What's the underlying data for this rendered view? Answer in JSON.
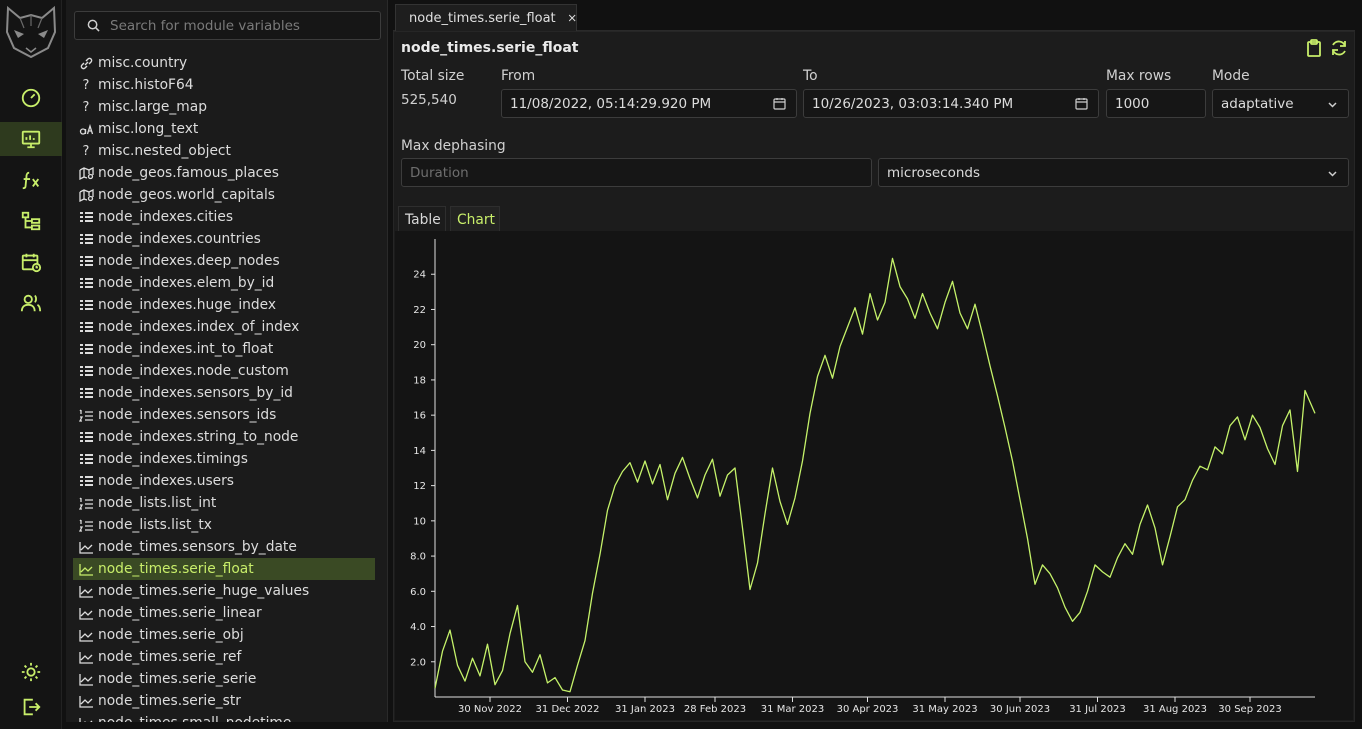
{
  "rail": {
    "items": [
      "dashboard-icon",
      "monitor-icon",
      "function-icon",
      "tree-icon",
      "calendar-clock-icon",
      "users-icon"
    ],
    "bottom": [
      "sun-icon",
      "logout-icon"
    ]
  },
  "sidebar": {
    "search_placeholder": "Search for module variables",
    "items": [
      {
        "icon": "link",
        "label": "misc.country"
      },
      {
        "icon": "question",
        "label": "misc.histoF64"
      },
      {
        "icon": "question",
        "label": "misc.large_map"
      },
      {
        "icon": "text",
        "label": "misc.long_text"
      },
      {
        "icon": "question",
        "label": "misc.nested_object"
      },
      {
        "icon": "map",
        "label": "node_geos.famous_places"
      },
      {
        "icon": "map",
        "label": "node_geos.world_capitals"
      },
      {
        "icon": "index",
        "label": "node_indexes.cities"
      },
      {
        "icon": "index",
        "label": "node_indexes.countries"
      },
      {
        "icon": "index",
        "label": "node_indexes.deep_nodes"
      },
      {
        "icon": "index",
        "label": "node_indexes.elem_by_id"
      },
      {
        "icon": "index",
        "label": "node_indexes.huge_index"
      },
      {
        "icon": "index",
        "label": "node_indexes.index_of_index"
      },
      {
        "icon": "index",
        "label": "node_indexes.int_to_float"
      },
      {
        "icon": "index",
        "label": "node_indexes.node_custom"
      },
      {
        "icon": "index",
        "label": "node_indexes.sensors_by_id"
      },
      {
        "icon": "ordered-list",
        "label": "node_indexes.sensors_ids"
      },
      {
        "icon": "index",
        "label": "node_indexes.string_to_node"
      },
      {
        "icon": "index",
        "label": "node_indexes.timings"
      },
      {
        "icon": "index",
        "label": "node_indexes.users"
      },
      {
        "icon": "ordered-list",
        "label": "node_lists.list_int"
      },
      {
        "icon": "ordered-list",
        "label": "node_lists.list_tx"
      },
      {
        "icon": "series",
        "label": "node_times.sensors_by_date"
      },
      {
        "icon": "series",
        "label": "node_times.serie_float",
        "selected": true
      },
      {
        "icon": "series",
        "label": "node_times.serie_huge_values"
      },
      {
        "icon": "series",
        "label": "node_times.serie_linear"
      },
      {
        "icon": "series",
        "label": "node_times.serie_obj"
      },
      {
        "icon": "series",
        "label": "node_times.serie_ref"
      },
      {
        "icon": "series",
        "label": "node_times.serie_serie"
      },
      {
        "icon": "series",
        "label": "node_times.serie_str"
      },
      {
        "icon": "series",
        "label": "node_times.small_nodetime"
      }
    ]
  },
  "main": {
    "tab_label": "node_times.serie_float",
    "title": "node_times.serie_float",
    "total_size_label": "Total size",
    "total_size": "525,540",
    "from_label": "From",
    "from_value": "11/08/2022, 05:14:29.920 PM",
    "to_label": "To",
    "to_value": "10/26/2023, 03:03:14.340 PM",
    "max_rows_label": "Max rows",
    "max_rows": "1000",
    "mode_label": "Mode",
    "mode": "adaptative",
    "dephasing_label": "Max dephasing",
    "duration_placeholder": "Duration",
    "unit": "microseconds",
    "view_tabs": [
      "Table",
      "Chart"
    ],
    "active_view": "Chart"
  },
  "colors": {
    "accent": "#c8ee6a",
    "line": "#c5f26a",
    "selected_bg": "#3a4a24"
  },
  "chart_data": {
    "type": "line",
    "title": "",
    "xlabel": "",
    "ylabel": "",
    "x_range": [
      "2022-11-08",
      "2023-10-26"
    ],
    "ylim": [
      0,
      26
    ],
    "yticks": [
      "2.0",
      "4.0",
      "6.0",
      "8.0",
      "10",
      "12",
      "14",
      "16",
      "18",
      "20",
      "22",
      "24"
    ],
    "xticks": [
      "30 Nov 2022",
      "31 Dec 2022",
      "31 Jan 2023",
      "28 Feb 2023",
      "31 Mar 2023",
      "30 Apr 2023",
      "31 May 2023",
      "30 Jun 2023",
      "31 Jul 2023",
      "31 Aug 2023",
      "30 Sep 2023"
    ],
    "series": [
      {
        "dates": [
          "2022-11-08",
          "2022-11-11",
          "2022-11-14",
          "2022-11-17",
          "2022-11-20",
          "2022-11-23",
          "2022-11-26",
          "2022-11-29",
          "2022-12-02",
          "2022-12-05",
          "2022-12-08",
          "2022-12-11",
          "2022-12-14",
          "2022-12-17",
          "2022-12-20",
          "2022-12-23",
          "2022-12-26",
          "2022-12-29",
          "2023-01-01",
          "2023-01-04",
          "2023-01-07",
          "2023-01-10",
          "2023-01-13",
          "2023-01-16",
          "2023-01-19",
          "2023-01-22",
          "2023-01-25",
          "2023-01-28",
          "2023-01-31",
          "2023-02-03",
          "2023-02-06",
          "2023-02-09",
          "2023-02-12",
          "2023-02-15",
          "2023-02-18",
          "2023-02-21",
          "2023-02-24",
          "2023-02-27",
          "2023-03-02",
          "2023-03-05",
          "2023-03-08",
          "2023-03-11",
          "2023-03-14",
          "2023-03-17",
          "2023-03-20",
          "2023-03-23",
          "2023-03-26",
          "2023-03-29",
          "2023-04-01",
          "2023-04-04",
          "2023-04-07",
          "2023-04-10",
          "2023-04-13",
          "2023-04-16",
          "2023-04-19",
          "2023-04-22",
          "2023-04-25",
          "2023-04-28",
          "2023-05-01",
          "2023-05-04",
          "2023-05-07",
          "2023-05-10",
          "2023-05-13",
          "2023-05-16",
          "2023-05-19",
          "2023-05-22",
          "2023-05-25",
          "2023-05-28",
          "2023-05-31",
          "2023-06-03",
          "2023-06-06",
          "2023-06-09",
          "2023-06-12",
          "2023-06-15",
          "2023-06-18",
          "2023-06-21",
          "2023-06-24",
          "2023-06-27",
          "2023-06-30",
          "2023-07-03",
          "2023-07-06",
          "2023-07-09",
          "2023-07-12",
          "2023-07-15",
          "2023-07-18",
          "2023-07-21",
          "2023-07-24",
          "2023-07-27",
          "2023-07-30",
          "2023-08-02",
          "2023-08-05",
          "2023-08-08",
          "2023-08-11",
          "2023-08-14",
          "2023-08-17",
          "2023-08-20",
          "2023-08-23",
          "2023-08-26",
          "2023-08-29",
          "2023-09-01",
          "2023-09-04",
          "2023-09-07",
          "2023-09-10",
          "2023-09-13",
          "2023-09-16",
          "2023-09-19",
          "2023-09-22",
          "2023-09-25",
          "2023-09-28",
          "2023-10-01",
          "2023-10-04",
          "2023-10-07",
          "2023-10-10",
          "2023-10-13",
          "2023-10-16",
          "2023-10-19",
          "2023-10-22",
          "2023-10-26"
        ],
        "values": [
          0.5,
          2.6,
          3.8,
          1.8,
          0.9,
          2.2,
          1.2,
          3.0,
          0.7,
          1.5,
          3.6,
          5.2,
          2.0,
          1.4,
          2.4,
          0.8,
          1.1,
          0.4,
          0.3,
          1.8,
          3.2,
          5.9,
          8.1,
          10.6,
          12.0,
          12.8,
          13.3,
          12.2,
          13.4,
          12.1,
          13.2,
          11.2,
          12.7,
          13.6,
          12.4,
          11.3,
          12.6,
          13.5,
          11.4,
          12.6,
          13.0,
          9.6,
          6.1,
          7.6,
          10.4,
          13.0,
          11.1,
          9.8,
          11.3,
          13.4,
          16.1,
          18.2,
          19.4,
          18.1,
          19.9,
          21.0,
          22.1,
          20.6,
          22.9,
          21.4,
          22.4,
          24.9,
          23.3,
          22.6,
          21.5,
          22.9,
          21.8,
          20.9,
          22.4,
          23.6,
          21.8,
          20.9,
          22.3,
          20.6,
          18.8,
          17.1,
          15.3,
          13.4,
          11.2,
          9.0,
          6.4,
          7.5,
          7.0,
          6.2,
          5.1,
          4.3,
          4.8,
          6.0,
          7.5,
          7.1,
          6.8,
          7.9,
          8.7,
          8.1,
          9.8,
          10.9,
          9.6,
          7.5,
          9.1,
          10.8,
          11.2,
          12.3,
          13.1,
          12.9,
          14.2,
          13.8,
          15.4,
          15.9,
          14.6,
          16.0,
          15.3,
          14.1,
          13.2,
          15.4,
          16.3,
          12.8,
          17.4,
          16.1
        ]
      }
    ]
  }
}
